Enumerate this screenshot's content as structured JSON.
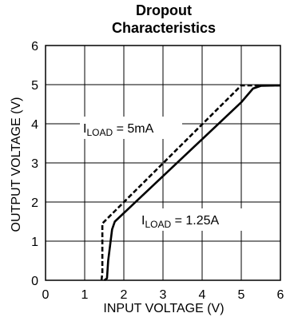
{
  "chart_data": {
    "type": "line",
    "title_line1": "Dropout",
    "title_line2": "Characteristics",
    "xlabel": "INPUT VOLTAGE (V)",
    "ylabel": "OUTPUT VOLTAGE (V)",
    "xlim": [
      0,
      6
    ],
    "ylim": [
      0,
      6
    ],
    "xticks": [
      "0",
      "1",
      "2",
      "3",
      "4",
      "5",
      "6"
    ],
    "yticks": [
      "0",
      "1",
      "2",
      "3",
      "4",
      "5",
      "6"
    ],
    "grid": true,
    "series": [
      {
        "name": "ILOAD = 5mA",
        "label_main": "I",
        "label_sub": "LOAD",
        "label_rest": " = 5mA",
        "style": "dashed",
        "color": "#000000",
        "x": [
          1.43,
          1.45,
          1.45,
          5.0,
          6.0
        ],
        "y": [
          0.0,
          0.2,
          1.45,
          4.98,
          4.98
        ]
      },
      {
        "name": "ILOAD = 1.25A",
        "label_main": "I",
        "label_sub": "LOAD",
        "label_rest": " = 1.25A",
        "style": "solid",
        "color": "#000000",
        "x": [
          1.5,
          1.57,
          1.6,
          1.7,
          1.77,
          5.0,
          5.3,
          5.5,
          6.0
        ],
        "y": [
          0.0,
          0.05,
          0.5,
          1.3,
          1.5,
          4.55,
          4.9,
          4.97,
          4.98
        ]
      }
    ]
  }
}
